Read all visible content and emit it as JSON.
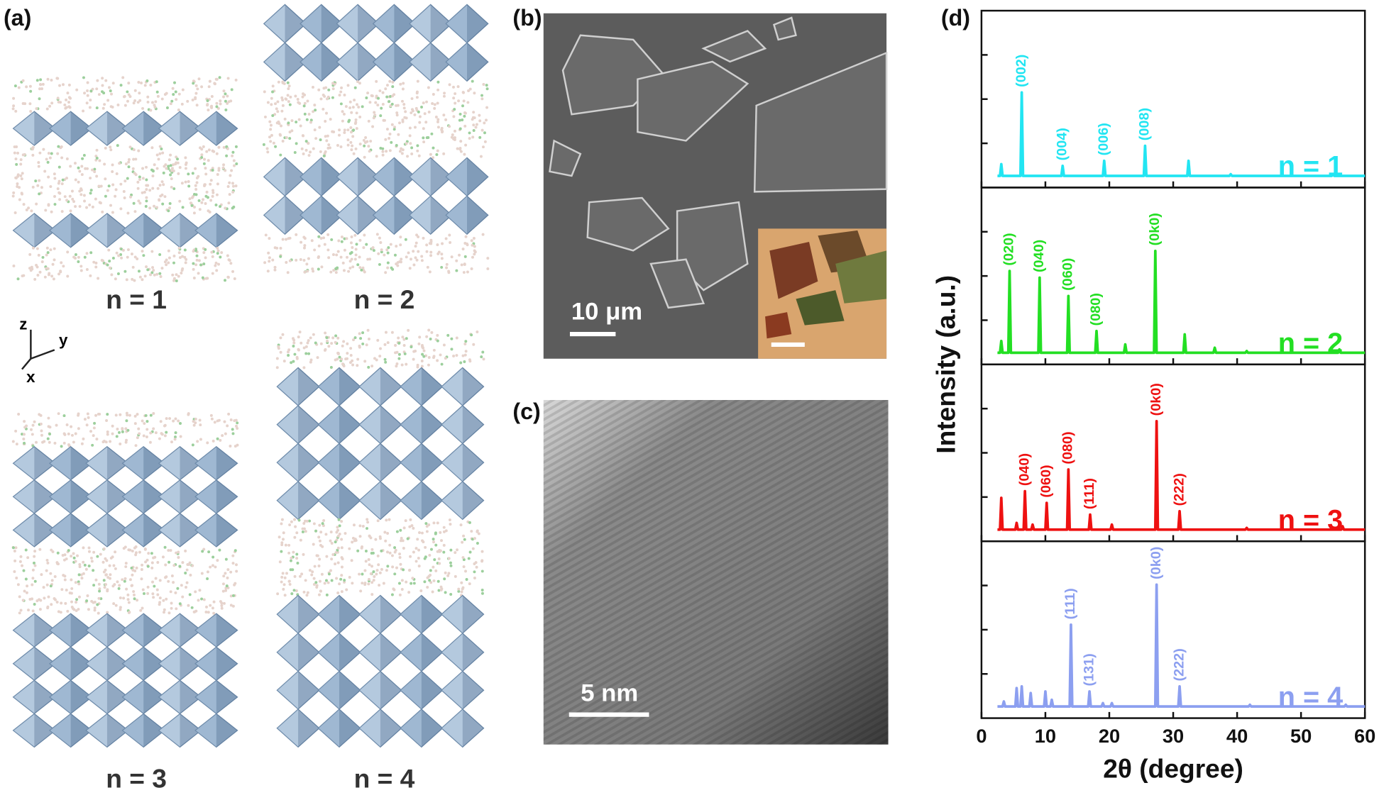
{
  "panels": {
    "a": {
      "label": "(a)",
      "structures": [
        "n = 1",
        "n = 2",
        "n = 3",
        "n = 4"
      ],
      "axes": [
        "z",
        "y",
        "x"
      ]
    },
    "b": {
      "label": "(b)",
      "scale_bar": "10 μm"
    },
    "c": {
      "label": "(c)",
      "scale_bar": "5 nm"
    },
    "d": {
      "label": "(d)"
    }
  },
  "chart_data": [
    {
      "type": "line",
      "ylabel": "Intensity (a.u.)",
      "xlim": [
        0,
        60
      ],
      "ylim": [
        -6,
        100
      ],
      "x": [
        2.5,
        2.9,
        3.1,
        3.3,
        6.1,
        6.3,
        6.5,
        12.5,
        12.7,
        12.9,
        19.0,
        19.2,
        19.4,
        25.4,
        25.6,
        25.8,
        32.2,
        32.4,
        32.6,
        38.8,
        39,
        39.2,
        54.8,
        55,
        55.2,
        60
      ],
      "series": [
        {
          "name": "n = 1",
          "color": "#22e5f2",
          "values": [
            1,
            1,
            8,
            1,
            1,
            51,
            1,
            1,
            7,
            1,
            1,
            10,
            1,
            1,
            19,
            1,
            1,
            10,
            1,
            1,
            2,
            1,
            1,
            2,
            1,
            1
          ]
        }
      ],
      "annotations": [
        {
          "text": "(002)",
          "x": 6.3
        },
        {
          "text": "(004)",
          "x": 12.7
        },
        {
          "text": "(006)",
          "x": 19.2
        },
        {
          "text": "(008)",
          "x": 25.6
        }
      ]
    },
    {
      "type": "line",
      "xlim": [
        0,
        60
      ],
      "ylim": [
        -6,
        100
      ],
      "x": [
        2.5,
        2.9,
        3.1,
        3.3,
        4.2,
        4.4,
        4.6,
        8.9,
        9.1,
        9.3,
        13.4,
        13.6,
        13.8,
        17.8,
        18,
        18.2,
        22.3,
        22.5,
        22.7,
        27,
        27.2,
        27.4,
        31.6,
        31.8,
        32,
        36.3,
        36.5,
        36.7,
        41.3,
        41.5,
        41.7,
        55.8,
        56,
        56.2,
        60
      ],
      "series": [
        {
          "name": "n = 2",
          "color": "#23df23",
          "values": [
            1,
            1,
            8,
            1,
            1,
            50,
            1,
            1,
            46,
            1,
            1,
            35,
            1,
            1,
            14,
            1,
            1,
            6,
            1,
            1,
            62,
            1,
            1,
            12,
            1,
            1,
            4,
            1,
            1,
            2,
            1,
            1,
            3,
            1,
            1
          ]
        }
      ],
      "annotations": [
        {
          "text": "(020)",
          "x": 4.4
        },
        {
          "text": "(040)",
          "x": 9.1
        },
        {
          "text": "(060)",
          "x": 13.6
        },
        {
          "text": "(080)",
          "x": 18
        },
        {
          "text": "(0k0)",
          "x": 27.2
        }
      ]
    },
    {
      "type": "line",
      "xlim": [
        0,
        60
      ],
      "ylim": [
        -6,
        100
      ],
      "x": [
        2.5,
        2.9,
        3.1,
        3.3,
        5.3,
        5.5,
        5.7,
        6.6,
        6.8,
        7,
        7.8,
        8,
        8.2,
        10,
        10.2,
        10.4,
        13.4,
        13.6,
        13.8,
        16.8,
        17,
        17.2,
        20.2,
        20.4,
        20.6,
        27.2,
        27.4,
        27.6,
        30.8,
        31,
        31.2,
        41.3,
        41.5,
        41.7,
        56.3,
        56.5,
        56.7,
        60
      ],
      "series": [
        {
          "name": "n = 3",
          "color": "#ee1111",
          "values": [
            1,
            1,
            20,
            1,
            1,
            5,
            1,
            1,
            24,
            1,
            1,
            4,
            1,
            1,
            17,
            1,
            1,
            37,
            1,
            1,
            10,
            1,
            1,
            4,
            1,
            1,
            66,
            1,
            1,
            12,
            1,
            1,
            2,
            1,
            1,
            3,
            1,
            1
          ]
        }
      ],
      "annotations": [
        {
          "text": "(040)",
          "x": 6.8
        },
        {
          "text": "(060)",
          "x": 10.2
        },
        {
          "text": "(080)",
          "x": 13.6
        },
        {
          "text": "(111)",
          "x": 17
        },
        {
          "text": "(0k0)",
          "x": 27.4
        },
        {
          "text": "(222)",
          "x": 31
        }
      ]
    },
    {
      "type": "line",
      "xlabel": "2θ (degree)",
      "xlim": [
        0,
        60
      ],
      "xticks": [
        0,
        10,
        20,
        30,
        40,
        50,
        60
      ],
      "ylim": [
        -6,
        100
      ],
      "x": [
        2.5,
        3.3,
        3.5,
        3.7,
        5.3,
        5.5,
        5.7,
        6.1,
        6.3,
        6.5,
        7.5,
        7.7,
        7.9,
        9.8,
        10,
        10.2,
        10.8,
        11,
        11.2,
        13.8,
        14,
        14.2,
        16.7,
        16.9,
        17.1,
        18.8,
        19,
        19.2,
        20.2,
        20.4,
        20.6,
        27.2,
        27.4,
        27.6,
        30.8,
        31,
        31.2,
        41.8,
        42,
        42.2,
        56.8,
        57,
        57.2,
        60
      ],
      "series": [
        {
          "name": "n = 4",
          "color": "#8c9ff0",
          "values": [
            1,
            1,
            4,
            1,
            1,
            12,
            1,
            1,
            13,
            1,
            1,
            9,
            1,
            1,
            10,
            1,
            1,
            5,
            1,
            1,
            50,
            1,
            1,
            10,
            1,
            1,
            3,
            1,
            1,
            3,
            1,
            1,
            74,
            1,
            1,
            13,
            1,
            1,
            2,
            1,
            1,
            2,
            1,
            1
          ]
        }
      ],
      "annotations": [
        {
          "text": "(111)",
          "x": 14
        },
        {
          "text": "(131)",
          "x": 16.9
        },
        {
          "text": "(0k0)",
          "x": 27.4
        },
        {
          "text": "(222)",
          "x": 31
        }
      ]
    }
  ]
}
